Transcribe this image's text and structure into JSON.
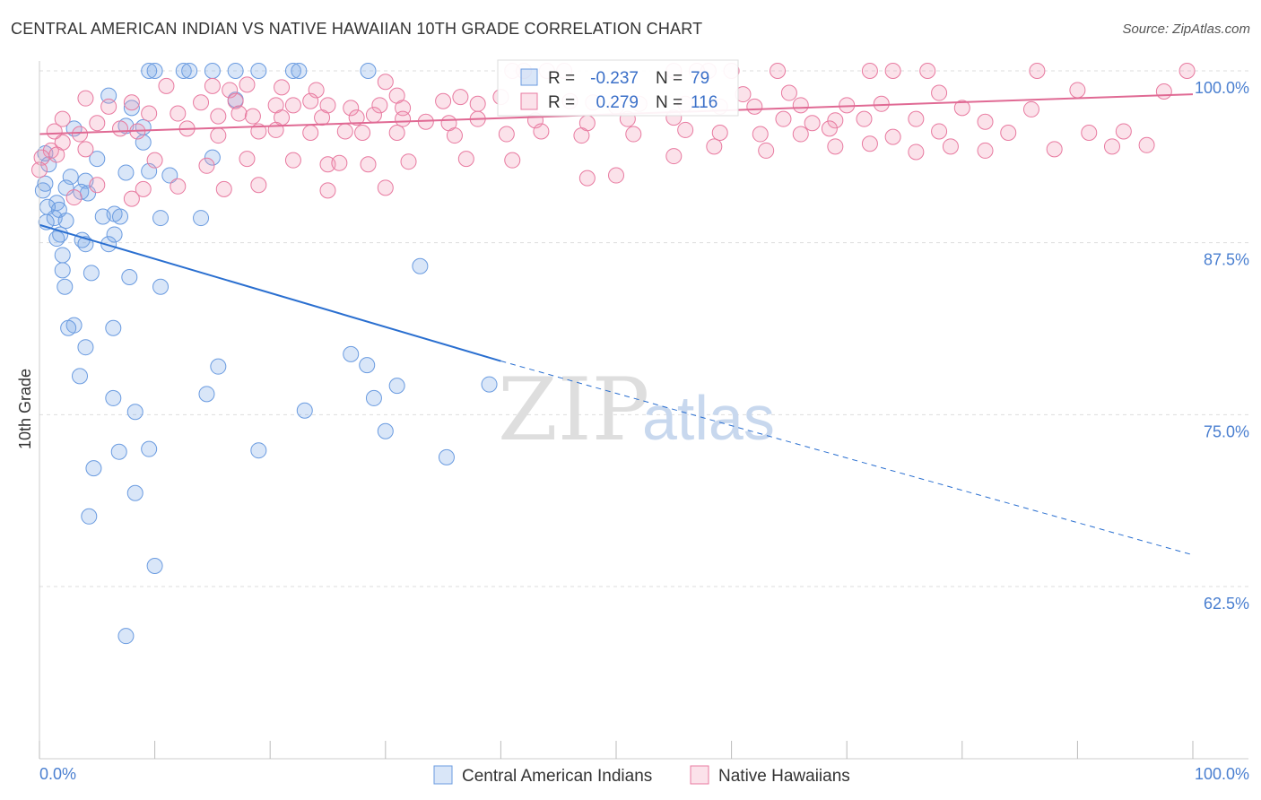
{
  "title": "CENTRAL AMERICAN INDIAN VS NATIVE HAWAIIAN 10TH GRADE CORRELATION CHART",
  "source": "Source: ZipAtlas.com",
  "watermark": {
    "zip": "ZIP",
    "atlas": "atlas"
  },
  "colors": {
    "blue": "#6a9be0",
    "blue_fill": "rgba(120,165,230,0.28)",
    "blue_line": "#2a6fd0",
    "pink": "#e87aa0",
    "pink_fill": "rgba(240,150,180,0.28)",
    "pink_line": "#e06a94",
    "tick": "#4a7fd0"
  },
  "chart_data": {
    "type": "scatter",
    "ylabel": "10th Grade",
    "xlim": [
      0,
      100
    ],
    "ylim": [
      50,
      100
    ],
    "y_ticks": [
      {
        "value": 100,
        "label": "100.0%"
      },
      {
        "value": 87.5,
        "label": "87.5%"
      },
      {
        "value": 75,
        "label": "75.0%"
      },
      {
        "value": 62.5,
        "label": "62.5%"
      }
    ],
    "x_tick_labels": {
      "left": "0.0%",
      "right": "100.0%"
    },
    "legend": {
      "stats": [
        {
          "r_label": "R =",
          "r": "-0.237",
          "n_label": "N =",
          "n": "79"
        },
        {
          "r_label": "R =",
          "r": "0.279",
          "n_label": "N =",
          "n": "116"
        }
      ]
    },
    "series": [
      {
        "name": "Central American Indians",
        "color": "blue",
        "trend": {
          "x0": 0,
          "y0": 88.8,
          "x1": 40,
          "y1": 78.9,
          "dash_to_x": 100,
          "dash_to_y": 64.8
        },
        "points": [
          [
            9.5,
            100
          ],
          [
            10,
            100
          ],
          [
            12.5,
            100
          ],
          [
            13,
            100
          ],
          [
            15,
            100
          ],
          [
            17,
            100
          ],
          [
            19,
            100
          ],
          [
            22,
            100
          ],
          [
            22.5,
            100
          ],
          [
            28.5,
            100
          ],
          [
            6,
            98.2
          ],
          [
            8,
            97.3
          ],
          [
            17,
            97.9
          ],
          [
            7.5,
            96
          ],
          [
            3,
            95.8
          ],
          [
            9,
            95.9
          ],
          [
            9,
            94.8
          ],
          [
            5,
            93.6
          ],
          [
            0.5,
            94
          ],
          [
            0.8,
            93.2
          ],
          [
            15,
            93.7
          ],
          [
            11.3,
            92.4
          ],
          [
            9.5,
            92.7
          ],
          [
            7.5,
            92.6
          ],
          [
            2.7,
            92.3
          ],
          [
            4,
            92
          ],
          [
            0.5,
            91.8
          ],
          [
            2.3,
            91.5
          ],
          [
            3.6,
            91.2
          ],
          [
            4.2,
            91.1
          ],
          [
            1.5,
            90.4
          ],
          [
            0.3,
            91.3
          ],
          [
            1.7,
            89.9
          ],
          [
            0.7,
            90.1
          ],
          [
            1.3,
            89.3
          ],
          [
            0.6,
            89
          ],
          [
            2.3,
            89.1
          ],
          [
            6.5,
            89.6
          ],
          [
            7,
            89.4
          ],
          [
            10.5,
            89.3
          ],
          [
            14,
            89.3
          ],
          [
            5.5,
            89.4
          ],
          [
            1.8,
            88.1
          ],
          [
            6.5,
            88.1
          ],
          [
            1.5,
            87.8
          ],
          [
            3.7,
            87.7
          ],
          [
            6,
            87.4
          ],
          [
            4,
            87.4
          ],
          [
            2,
            86.6
          ],
          [
            2,
            85.5
          ],
          [
            4.5,
            85.3
          ],
          [
            7.8,
            85
          ],
          [
            10.5,
            84.3
          ],
          [
            2.2,
            84.3
          ],
          [
            33,
            85.8
          ],
          [
            3,
            81.5
          ],
          [
            2.5,
            81.3
          ],
          [
            6.4,
            81.3
          ],
          [
            4,
            79.9
          ],
          [
            27,
            79.4
          ],
          [
            28.4,
            78.6
          ],
          [
            15.5,
            78.5
          ],
          [
            3.5,
            77.8
          ],
          [
            31,
            77.1
          ],
          [
            39,
            77.2
          ],
          [
            14.5,
            76.5
          ],
          [
            6.4,
            76.2
          ],
          [
            29,
            76.2
          ],
          [
            23,
            75.3
          ],
          [
            8.3,
            75.2
          ],
          [
            30,
            73.8
          ],
          [
            9.5,
            72.5
          ],
          [
            6.9,
            72.3
          ],
          [
            19,
            72.4
          ],
          [
            35.3,
            71.9
          ],
          [
            4.7,
            71.1
          ],
          [
            8.3,
            69.3
          ],
          [
            4.3,
            67.6
          ],
          [
            10,
            64
          ],
          [
            7.5,
            58.9
          ]
        ]
      },
      {
        "name": "Native Hawaiians",
        "color": "pink",
        "trend": {
          "x0": 0,
          "y0": 95.4,
          "x1": 100,
          "y1": 98.3
        },
        "points": [
          [
            41,
            100
          ],
          [
            42,
            100
          ],
          [
            44,
            100
          ],
          [
            45.5,
            100
          ],
          [
            55,
            100
          ],
          [
            57,
            100
          ],
          [
            58,
            100
          ],
          [
            60,
            100
          ],
          [
            64,
            100
          ],
          [
            72,
            100
          ],
          [
            74,
            100
          ],
          [
            77,
            100
          ],
          [
            86.5,
            100
          ],
          [
            99.5,
            100
          ],
          [
            11,
            98.9
          ],
          [
            15,
            98.9
          ],
          [
            16.5,
            98.6
          ],
          [
            18,
            99
          ],
          [
            21,
            98.8
          ],
          [
            24,
            98.6
          ],
          [
            30,
            99.2
          ],
          [
            31,
            98.2
          ],
          [
            36.5,
            98.1
          ],
          [
            40,
            98.1
          ],
          [
            61,
            98.3
          ],
          [
            65,
            98.4
          ],
          [
            78,
            98.4
          ],
          [
            90,
            98.6
          ],
          [
            97.5,
            98.5
          ],
          [
            4,
            98
          ],
          [
            6,
            97.4
          ],
          [
            8,
            97.7
          ],
          [
            14,
            97.7
          ],
          [
            17,
            97.8
          ],
          [
            20.5,
            97.5
          ],
          [
            22,
            97.5
          ],
          [
            23.5,
            97.8
          ],
          [
            25,
            97.5
          ],
          [
            27,
            97.3
          ],
          [
            29.5,
            97.5
          ],
          [
            31.5,
            97.3
          ],
          [
            35,
            97.8
          ],
          [
            38,
            97.6
          ],
          [
            46,
            97.8
          ],
          [
            48,
            97.7
          ],
          [
            50,
            97.4
          ],
          [
            52,
            97.6
          ],
          [
            56,
            97.6
          ],
          [
            59,
            97.4
          ],
          [
            62,
            97.4
          ],
          [
            66,
            97.5
          ],
          [
            70,
            97.5
          ],
          [
            73,
            97.6
          ],
          [
            80,
            97.3
          ],
          [
            86,
            97.2
          ],
          [
            2,
            96.5
          ],
          [
            5,
            96.2
          ],
          [
            9.5,
            96.9
          ],
          [
            12,
            96.9
          ],
          [
            15.5,
            96.7
          ],
          [
            17.3,
            96.9
          ],
          [
            18.5,
            96.7
          ],
          [
            21,
            96.6
          ],
          [
            24.5,
            96.6
          ],
          [
            27.5,
            96.6
          ],
          [
            29,
            96.8
          ],
          [
            31.5,
            96.5
          ],
          [
            33.5,
            96.3
          ],
          [
            35.5,
            96.2
          ],
          [
            38,
            96.5
          ],
          [
            43,
            96.4
          ],
          [
            47.5,
            96.2
          ],
          [
            51,
            96.5
          ],
          [
            55,
            96.6
          ],
          [
            64.5,
            96.5
          ],
          [
            67,
            96.2
          ],
          [
            69,
            96.4
          ],
          [
            71.5,
            96.5
          ],
          [
            76,
            96.5
          ],
          [
            82,
            96.3
          ],
          [
            1.3,
            95.6
          ],
          [
            3.5,
            95.4
          ],
          [
            7,
            95.8
          ],
          [
            8.5,
            95.6
          ],
          [
            12.8,
            95.8
          ],
          [
            15.5,
            95.3
          ],
          [
            19,
            95.6
          ],
          [
            20.5,
            95.7
          ],
          [
            23.5,
            95.5
          ],
          [
            26.5,
            95.6
          ],
          [
            28,
            95.5
          ],
          [
            31,
            95.5
          ],
          [
            36,
            95.3
          ],
          [
            40.5,
            95.4
          ],
          [
            43.5,
            95.6
          ],
          [
            47,
            95.3
          ],
          [
            51.5,
            95.4
          ],
          [
            56,
            95.7
          ],
          [
            59,
            95.5
          ],
          [
            62.5,
            95.4
          ],
          [
            66,
            95.4
          ],
          [
            68.5,
            95.8
          ],
          [
            74,
            95.2
          ],
          [
            78,
            95.6
          ],
          [
            84,
            95.5
          ],
          [
            91,
            95.5
          ],
          [
            94,
            95.6
          ],
          [
            2,
            94.8
          ],
          [
            1,
            94.2
          ],
          [
            4,
            94.3
          ],
          [
            10,
            93.5
          ],
          [
            14.5,
            93.1
          ],
          [
            18,
            93.6
          ],
          [
            22,
            93.5
          ],
          [
            25,
            93.2
          ],
          [
            26,
            93.3
          ],
          [
            28.5,
            93.2
          ],
          [
            32,
            93.4
          ],
          [
            37,
            93.6
          ],
          [
            41,
            93.5
          ],
          [
            47.5,
            92.2
          ],
          [
            50,
            92.4
          ],
          [
            55,
            93.8
          ],
          [
            58.5,
            94.5
          ],
          [
            63,
            94.2
          ],
          [
            69,
            94.5
          ],
          [
            72,
            94.7
          ],
          [
            76,
            94.1
          ],
          [
            79,
            94.5
          ],
          [
            82,
            94.2
          ],
          [
            88,
            94.3
          ],
          [
            93,
            94.5
          ],
          [
            96,
            94.6
          ],
          [
            1.5,
            93.9
          ],
          [
            5,
            91.7
          ],
          [
            9,
            91.4
          ],
          [
            12,
            91.6
          ],
          [
            16,
            91.4
          ],
          [
            19,
            91.7
          ],
          [
            25,
            91.3
          ],
          [
            30,
            91.5
          ],
          [
            0.2,
            93.7
          ],
          [
            0,
            92.8
          ],
          [
            3,
            90.8
          ],
          [
            8,
            90.7
          ]
        ]
      }
    ]
  }
}
